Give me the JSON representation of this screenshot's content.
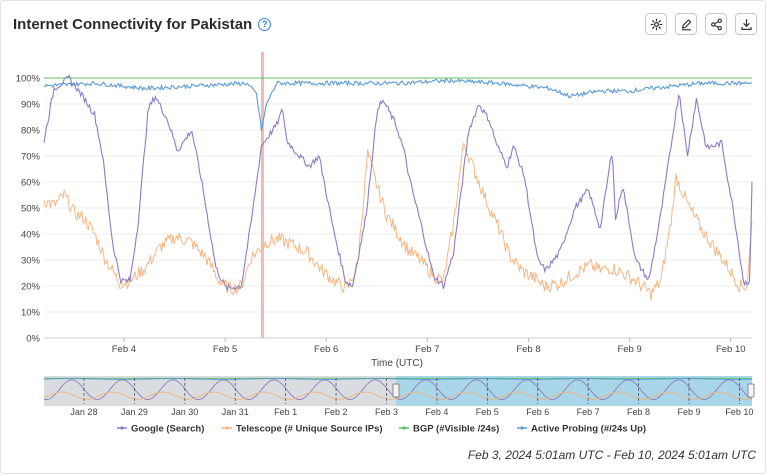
{
  "title": "Internet Connectivity for Pakistan",
  "toolbar": {
    "settings_icon": "gear-icon",
    "edit_icon": "pencil-icon",
    "share_icon": "share-icon",
    "download_icon": "download-icon"
  },
  "chart_data": {
    "type": "line",
    "xlabel": "Time (UTC)",
    "ylabel": "",
    "ylim": [
      0,
      100
    ],
    "yticks": [
      "0%",
      "10%",
      "20%",
      "30%",
      "40%",
      "50%",
      "60%",
      "70%",
      "80%",
      "90%",
      "100%"
    ],
    "x_range": [
      "Feb 3, 2024 05:01",
      "Feb 10, 2024 05:01"
    ],
    "xticks": [
      "Feb 4",
      "Feb 5",
      "Feb 6",
      "Feb 7",
      "Feb 8",
      "Feb 9",
      "Feb 10"
    ],
    "highlight_band": {
      "start": "Feb 5, 2024 08:30",
      "end": "Feb 5, 2024 09:00",
      "color": "#f7b6b6"
    },
    "grid": true,
    "legend_position": "bottom",
    "series": [
      {
        "name": "Google (Search)",
        "color": "#8e7cc3",
        "points": [
          [
            0,
            76
          ],
          [
            0.1,
            96
          ],
          [
            0.25,
            100
          ],
          [
            0.4,
            92
          ],
          [
            0.5,
            86
          ],
          [
            0.58,
            70
          ],
          [
            0.68,
            36
          ],
          [
            0.76,
            22
          ],
          [
            0.85,
            22
          ],
          [
            0.93,
            44
          ],
          [
            1.03,
            88
          ],
          [
            1.1,
            93
          ],
          [
            1.22,
            84
          ],
          [
            1.32,
            72
          ],
          [
            1.46,
            80
          ],
          [
            1.56,
            60
          ],
          [
            1.7,
            27
          ],
          [
            1.8,
            19
          ],
          [
            1.95,
            20
          ],
          [
            2.05,
            45
          ],
          [
            2.15,
            74
          ],
          [
            2.3,
            82
          ],
          [
            2.36,
            88
          ],
          [
            2.4,
            76
          ],
          [
            2.48,
            72
          ],
          [
            2.62,
            66
          ],
          [
            2.72,
            70
          ],
          [
            2.86,
            42
          ],
          [
            2.98,
            22
          ],
          [
            3.05,
            20
          ],
          [
            3.18,
            46
          ],
          [
            3.3,
            89
          ],
          [
            3.36,
            91
          ],
          [
            3.48,
            82
          ],
          [
            3.56,
            72
          ],
          [
            3.62,
            60
          ],
          [
            3.72,
            45
          ],
          [
            3.85,
            24
          ],
          [
            3.95,
            20
          ],
          [
            4.05,
            33
          ],
          [
            4.2,
            80
          ],
          [
            4.3,
            90
          ],
          [
            4.4,
            84
          ],
          [
            4.48,
            74
          ],
          [
            4.58,
            66
          ],
          [
            4.64,
            74
          ],
          [
            4.75,
            62
          ],
          [
            4.88,
            30
          ],
          [
            4.96,
            26
          ],
          [
            5.1,
            33
          ],
          [
            5.25,
            50
          ],
          [
            5.38,
            57
          ],
          [
            5.5,
            42
          ],
          [
            5.62,
            73
          ],
          [
            5.65,
            45
          ],
          [
            5.72,
            59
          ],
          [
            5.85,
            30
          ],
          [
            5.98,
            22
          ],
          [
            6.1,
            48
          ],
          [
            6.28,
            95
          ],
          [
            6.36,
            70
          ],
          [
            6.45,
            92
          ],
          [
            6.55,
            73
          ],
          [
            6.7,
            75
          ],
          [
            6.82,
            48
          ],
          [
            6.92,
            21
          ],
          [
            6.98,
            22
          ],
          [
            7.0,
            61
          ]
        ]
      },
      {
        "name": "Telescope (# Unique Source IPs)",
        "color": "#f4b27a",
        "points": [
          [
            0,
            53
          ],
          [
            0.1,
            51
          ],
          [
            0.2,
            55
          ],
          [
            0.3,
            48
          ],
          [
            0.4,
            46
          ],
          [
            0.5,
            40
          ],
          [
            0.6,
            31
          ],
          [
            0.75,
            21
          ],
          [
            0.85,
            22
          ],
          [
            1.0,
            27
          ],
          [
            1.15,
            35
          ],
          [
            1.3,
            39
          ],
          [
            1.45,
            37
          ],
          [
            1.6,
            31
          ],
          [
            1.75,
            21
          ],
          [
            1.85,
            19
          ],
          [
            1.95,
            20
          ],
          [
            2.05,
            31
          ],
          [
            2.2,
            37
          ],
          [
            2.32,
            38
          ],
          [
            2.45,
            36
          ],
          [
            2.6,
            33
          ],
          [
            2.75,
            26
          ],
          [
            2.9,
            21
          ],
          [
            3.0,
            19
          ],
          [
            3.1,
            28
          ],
          [
            3.2,
            71
          ],
          [
            3.28,
            60
          ],
          [
            3.38,
            48
          ],
          [
            3.5,
            40
          ],
          [
            3.6,
            34
          ],
          [
            3.72,
            30
          ],
          [
            3.85,
            24
          ],
          [
            3.95,
            22
          ],
          [
            4.05,
            44
          ],
          [
            4.15,
            75
          ],
          [
            4.25,
            65
          ],
          [
            4.38,
            52
          ],
          [
            4.5,
            42
          ],
          [
            4.6,
            32
          ],
          [
            4.72,
            26
          ],
          [
            4.85,
            23
          ],
          [
            4.95,
            20
          ],
          [
            5.1,
            21
          ],
          [
            5.25,
            25
          ],
          [
            5.4,
            28
          ],
          [
            5.5,
            26
          ],
          [
            5.62,
            27
          ],
          [
            5.72,
            25
          ],
          [
            5.85,
            22
          ],
          [
            6.0,
            17
          ],
          [
            6.1,
            22
          ],
          [
            6.2,
            45
          ],
          [
            6.25,
            62
          ],
          [
            6.38,
            50
          ],
          [
            6.5,
            42
          ],
          [
            6.62,
            35
          ],
          [
            6.75,
            28
          ],
          [
            6.88,
            20
          ],
          [
            6.95,
            20
          ],
          [
            7.0,
            44
          ]
        ]
      },
      {
        "name": "BGP (#Visible /24s)",
        "color": "#5cc064",
        "points": [
          [
            0,
            100
          ],
          [
            7.0,
            100
          ]
        ]
      },
      {
        "name": "Active Probing (#/24s Up)",
        "color": "#5b9bd5",
        "points": [
          [
            0,
            97
          ],
          [
            0.5,
            98
          ],
          [
            1.0,
            96
          ],
          [
            1.5,
            97
          ],
          [
            2.0,
            98
          ],
          [
            2.1,
            94
          ],
          [
            2.15,
            80
          ],
          [
            2.2,
            90
          ],
          [
            2.3,
            98
          ],
          [
            3.0,
            98
          ],
          [
            3.5,
            98
          ],
          [
            4.0,
            99
          ],
          [
            4.5,
            98
          ],
          [
            5.0,
            96
          ],
          [
            5.2,
            93
          ],
          [
            5.5,
            95
          ],
          [
            5.8,
            95
          ],
          [
            6.0,
            96
          ],
          [
            6.5,
            98
          ],
          [
            7.0,
            98
          ]
        ]
      }
    ]
  },
  "navigator": {
    "ticks": [
      "Jan 28",
      "Jan 29",
      "Jan 30",
      "Jan 31",
      "Feb 1",
      "Feb 2",
      "Feb 3",
      "Feb 4",
      "Feb 5",
      "Feb 6",
      "Feb 7",
      "Feb 8",
      "Feb 9",
      "Feb 10"
    ]
  },
  "legend": [
    {
      "label": "Google (Search)",
      "color": "#8e7cc3"
    },
    {
      "label": "Telescope (# Unique Source IPs)",
      "color": "#f4b27a"
    },
    {
      "label": "BGP (#Visible /24s)",
      "color": "#5cc064"
    },
    {
      "label": "Active Probing (#/24s Up)",
      "color": "#5b9bd5"
    }
  ],
  "footer": "Feb 3, 2024 5:01am UTC - Feb 10, 2024 5:01am UTC"
}
